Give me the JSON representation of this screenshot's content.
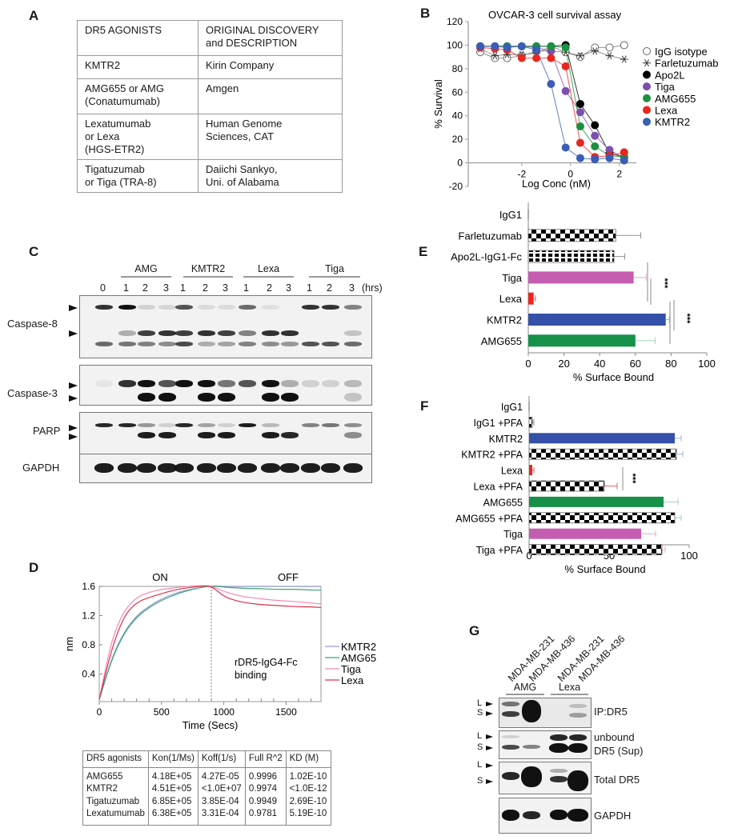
{
  "panels": {
    "A": {
      "label": "A",
      "table": {
        "headers": [
          "DR5 AGONISTS",
          "ORIGINAL DISCOVERY and DESCRIPTION"
        ],
        "rows": [
          [
            "KMTR2",
            "Kirin Company"
          ],
          [
            "AMG655 or AMG (Conatumumab)",
            "Amgen"
          ],
          [
            "Lexatumumab or Lexa (HGS-ETR2)",
            "Human Genome Sciences, CAT"
          ],
          [
            "Tigatuzumab or Tiga (TRA-8)",
            "Daiichi Sankyo, Uni. of Alabama"
          ]
        ],
        "header_line1": [
          "DR5 AGONISTS",
          "ORIGINAL DISCOVERY"
        ],
        "header_line2": [
          "",
          "and DESCRIPTION"
        ],
        "row_lines": [
          [
            [
              "KMTR2"
            ],
            [
              "Kirin Company"
            ]
          ],
          [
            [
              "AMG655 or AMG",
              "(Conatumumab)"
            ],
            [
              "Amgen"
            ]
          ],
          [
            [
              "Lexatumumab",
              "or Lexa",
              "(HGS-ETR2)"
            ],
            [
              "Human Genome",
              "Sciences, CAT"
            ]
          ],
          [
            [
              "Tigatuzumab",
              "or Tiga (TRA-8)"
            ],
            [
              "Daiichi Sankyo,",
              "Uni. of Alabama"
            ]
          ]
        ]
      }
    },
    "B": {
      "label": "B"
    },
    "C": {
      "label": "C",
      "groups": [
        "AMG",
        "KMTR2",
        "Lexa",
        "Tiga"
      ],
      "lanes": [
        "0",
        "1",
        "2",
        "3",
        "1",
        "2",
        "3",
        "1",
        "2",
        "3",
        "1",
        "2",
        "3"
      ],
      "time_unit": "(hrs)",
      "blots": [
        "Caspase-8",
        "Caspase-3",
        "PARP",
        "GAPDH"
      ]
    },
    "D": {
      "label": "D",
      "phase_on": "ON",
      "phase_off": "OFF",
      "annotation_line1": "rDR5-IgG4-Fc",
      "annotation_line2": "binding",
      "kinetics_table": {
        "headers": [
          "DR5 agonists",
          "Kon(1/Ms)",
          "Koff(1/s)",
          "Full R^2",
          "KD (M)"
        ],
        "rows": [
          [
            "AMG655",
            "4.18E+05",
            "4.27E-05",
            "0.9996",
            "1.02E-10"
          ],
          [
            "KMTR2",
            "4.51E+05",
            "<1.0E+07",
            "0.9974",
            "<1.0E-12"
          ],
          [
            "Tigatuzumab",
            "6.85E+05",
            "3.85E-04",
            "0.9949",
            "2.69E-10"
          ],
          [
            "Lexatumumab",
            "6.38E+05",
            "3.31E-04",
            "0.9781",
            "5.19E-10"
          ]
        ]
      }
    },
    "E": {
      "label": "E",
      "significance": [
        "***",
        "***"
      ]
    },
    "F": {
      "label": "F",
      "significance": [
        "***"
      ]
    },
    "G": {
      "label": "G",
      "lanes": [
        "MDA-MB-231",
        "MDA-MB-436",
        "MDA-MB-231",
        "MDA-MB-436"
      ],
      "groups": [
        "AMG",
        "Lexa"
      ],
      "blots": [
        "IP:DR5",
        "unbound DR5 (Sup)",
        "Total DR5",
        "GAPDH"
      ],
      "unbound_line1": "unbound",
      "unbound_line2": "DR5 (Sup)",
      "band_markers": [
        "L",
        "S"
      ]
    }
  },
  "chart_data": [
    {
      "id": "B",
      "type": "scatter",
      "title": "OVCAR-3 cell survival assay",
      "xlabel": "Log Conc (nM)",
      "ylabel": "% Survival",
      "xlim": [
        -3.8,
        2.7
      ],
      "ylim": [
        -20,
        120
      ],
      "xticks": [
        -2,
        0,
        2
      ],
      "yticks": [
        -20,
        0,
        20,
        40,
        60,
        80,
        100,
        120
      ],
      "legend_position": "right",
      "x": [
        -3.7,
        -3.1,
        -2.6,
        -2.0,
        -1.4,
        -0.8,
        -0.2,
        0.4,
        1.0,
        1.6,
        2.2
      ],
      "series": [
        {
          "name": "IgG isotype",
          "marker": "open-circle",
          "color": "#555555",
          "values": [
            94,
            89,
            89,
            91,
            95,
            95,
            94,
            90,
            98,
            98,
            100
          ]
        },
        {
          "name": "Farletuzumab",
          "marker": "asterisk",
          "color": "#333333",
          "values": [
            97,
            91,
            92,
            92,
            93,
            99,
            94,
            91,
            95,
            91,
            88
          ]
        },
        {
          "name": "Apo2L",
          "marker": "filled-circle",
          "color": "#000000",
          "values": [
            99,
            99,
            99,
            99,
            99,
            99,
            100,
            50,
            32,
            8,
            5
          ]
        },
        {
          "name": "Tiga",
          "marker": "filled-circle",
          "color": "#7b4fad",
          "values": [
            99,
            99,
            99,
            99,
            98,
            95,
            61,
            43,
            23,
            11,
            4
          ]
        },
        {
          "name": "AMG655",
          "marker": "filled-circle",
          "color": "#1a9140",
          "values": [
            99,
            99,
            99,
            99,
            99,
            99,
            98,
            31,
            14,
            6,
            5
          ]
        },
        {
          "name": "Lexa",
          "marker": "filled-circle",
          "color": "#e8271f",
          "values": [
            98,
            97,
            96,
            89,
            89,
            89,
            82,
            17,
            5,
            6,
            9
          ]
        },
        {
          "name": "KMTR2",
          "marker": "filled-circle",
          "color": "#3a5db5",
          "values": [
            99,
            99,
            98,
            99,
            96,
            67,
            13,
            4,
            3,
            4,
            2
          ]
        }
      ]
    },
    {
      "id": "D",
      "type": "line",
      "title": "",
      "xlabel": "Time (Secs)",
      "ylabel": "nm",
      "xlim": [
        0,
        1800
      ],
      "ylim": [
        0,
        1.6
      ],
      "xticks": [
        0,
        500,
        1000,
        1500
      ],
      "yticks": [
        0.4,
        0.8,
        1.2,
        1.6
      ],
      "legend_position": "right",
      "x": [
        0,
        100,
        200,
        300,
        400,
        500,
        600,
        700,
        800,
        900,
        1000,
        1100,
        1200,
        1300,
        1400,
        1500,
        1600,
        1700,
        1780
      ],
      "series": [
        {
          "name": "KMTR2",
          "color": "#9a9fd0",
          "values": [
            0.05,
            0.62,
            0.98,
            1.2,
            1.33,
            1.43,
            1.5,
            1.55,
            1.58,
            1.61,
            1.6,
            1.6,
            1.6,
            1.6,
            1.6,
            1.6,
            1.6,
            1.6,
            1.6
          ]
        },
        {
          "name": "AMG655",
          "color": "#3aa57a",
          "values": [
            0.05,
            0.6,
            0.96,
            1.18,
            1.31,
            1.41,
            1.48,
            1.54,
            1.58,
            1.61,
            1.59,
            1.58,
            1.57,
            1.57,
            1.56,
            1.56,
            1.56,
            1.55,
            1.55
          ]
        },
        {
          "name": "Tiga",
          "color": "#f08ab8",
          "values": [
            0.05,
            0.88,
            1.27,
            1.45,
            1.52,
            1.56,
            1.58,
            1.6,
            1.61,
            1.61,
            1.53,
            1.48,
            1.45,
            1.43,
            1.41,
            1.4,
            1.39,
            1.37,
            1.36
          ]
        },
        {
          "name": "Lexa",
          "color": "#e0304a",
          "values": [
            0.05,
            0.75,
            1.2,
            1.38,
            1.45,
            1.5,
            1.55,
            1.58,
            1.6,
            1.61,
            1.46,
            1.4,
            1.37,
            1.35,
            1.34,
            1.33,
            1.32,
            1.32,
            1.31
          ]
        }
      ]
    },
    {
      "id": "E",
      "type": "bar",
      "orientation": "horizontal",
      "xlabel": "% Surface Bound",
      "xlim": [
        0,
        100
      ],
      "xticks": [
        0,
        20,
        40,
        60,
        80,
        100
      ],
      "categories": [
        "IgG1",
        "Farletuzumab",
        "Apo2L-IgG1-Fc",
        "Tiga",
        "Lexa",
        "KMTR2",
        "AMG655"
      ],
      "values": [
        0,
        49,
        48,
        59,
        3,
        77,
        60
      ],
      "errors": [
        0,
        14,
        6,
        7,
        1,
        2,
        11
      ],
      "colors": [
        "#444444",
        "checker",
        "grid",
        "#c45db0",
        "#e8271f",
        "#3450a8",
        "#17904a"
      ]
    },
    {
      "id": "F",
      "type": "bar",
      "orientation": "horizontal",
      "xlabel": "% Surface Bound",
      "xlim": [
        0,
        100
      ],
      "xticks": [
        0,
        50,
        100
      ],
      "categories": [
        "IgG1",
        "IgG1 +PFA",
        "KMTR2",
        "KMTR2 +PFA",
        "Lexa",
        "Lexa +PFA",
        "AMG655",
        "AMG655 +PFA",
        "Tiga",
        "Tiga +PFA"
      ],
      "values": [
        0,
        2,
        91,
        92,
        2,
        47,
        84,
        91,
        70,
        83
      ],
      "errors": [
        0,
        1,
        4,
        4,
        1,
        8,
        9,
        4,
        9,
        2
      ],
      "colors": [
        "#444444",
        "checker",
        "#3450a8",
        "checker",
        "#e8271f",
        "checker",
        "#17904a",
        "checker",
        "#c45db0",
        "checker"
      ]
    }
  ]
}
